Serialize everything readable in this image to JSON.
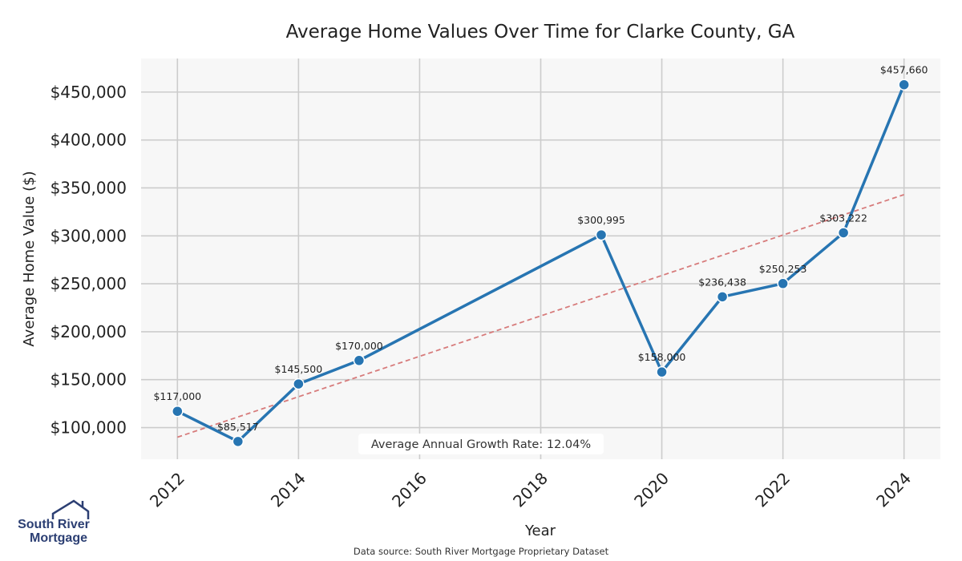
{
  "chart_data": {
    "type": "line",
    "title": "Average Home Values Over Time for Clarke County, GA",
    "xlabel": "Year",
    "ylabel": "Average Home Value ($)",
    "x": [
      2012,
      2013,
      2014,
      2015,
      2019,
      2020,
      2021,
      2022,
      2023,
      2024
    ],
    "values": [
      117000,
      85517,
      145500,
      170000,
      300995,
      158000,
      236438,
      250253,
      303222,
      457660
    ],
    "data_labels": [
      "$117,000",
      "$85,517",
      "$145,500",
      "$170,000",
      "$300,995",
      "$158,000",
      "$236,438",
      "$250,253",
      "$303,222",
      "$457,660"
    ],
    "xticks": [
      2012,
      2014,
      2016,
      2018,
      2020,
      2022,
      2024
    ],
    "yticks": [
      100000,
      150000,
      200000,
      250000,
      300000,
      350000,
      400000,
      450000
    ],
    "ytick_labels": [
      "$100,000",
      "$150,000",
      "$200,000",
      "$250,000",
      "$300,000",
      "$350,000",
      "$400,000",
      "$450,000"
    ],
    "xlim": [
      2011.4,
      2024.6
    ],
    "ylim": [
      67000,
      485000
    ],
    "trendline": {
      "x": [
        2012,
        2024
      ],
      "y": [
        90000,
        343000
      ]
    },
    "grid": true,
    "line_color": "#2775b2",
    "trend_color": "#d77b7b",
    "annotation": "Average Annual Growth Rate: 12.04%"
  },
  "logo": {
    "line1": "South River",
    "line2": "Mortgage"
  },
  "source": "Data source: South River Mortgage Proprietary Dataset"
}
